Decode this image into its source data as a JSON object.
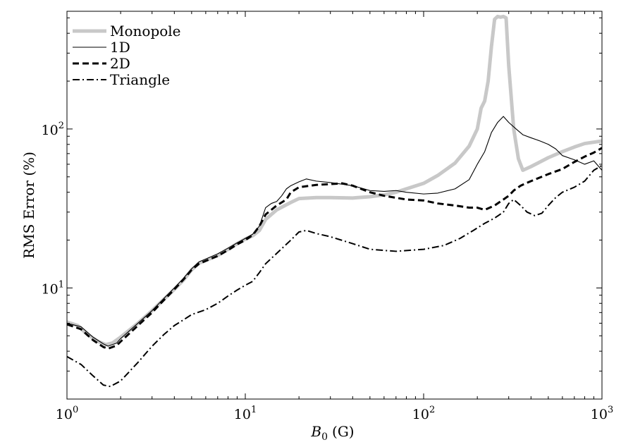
{
  "chart_data": {
    "type": "line",
    "title": "",
    "xlabel": {
      "symbol": "B",
      "subscript": "0",
      "unit": "(G)"
    },
    "ylabel": "RMS Error (%)",
    "xscale": "log",
    "yscale": "log",
    "xlim": [
      1,
      1000
    ],
    "ylim": [
      2,
      550
    ],
    "grid": false,
    "legend_position": "top-left",
    "x_ticks": [
      {
        "value": 1,
        "base": "10",
        "exp": "0"
      },
      {
        "value": 10,
        "base": "10",
        "exp": "1"
      },
      {
        "value": 100,
        "base": "10",
        "exp": "2"
      },
      {
        "value": 1000,
        "base": "10",
        "exp": "3"
      }
    ],
    "y_ticks": [
      {
        "value": 10,
        "base": "10",
        "exp": "1"
      },
      {
        "value": 100,
        "base": "10",
        "exp": "2"
      }
    ],
    "series": [
      {
        "name": "Monopole",
        "color": "#c8c8c8",
        "style": "solid",
        "width": 5,
        "points": [
          [
            1,
            6.1
          ],
          [
            1.15,
            5.8
          ],
          [
            1.3,
            5.1
          ],
          [
            1.5,
            4.6
          ],
          [
            1.65,
            4.4
          ],
          [
            1.8,
            4.5
          ],
          [
            2,
            4.9
          ],
          [
            2.5,
            6.0
          ],
          [
            3,
            7.2
          ],
          [
            3.5,
            8.5
          ],
          [
            4,
            9.8
          ],
          [
            4.5,
            11.2
          ],
          [
            5,
            13.0
          ],
          [
            5.5,
            14.3
          ],
          [
            6,
            14.9
          ],
          [
            7,
            16.0
          ],
          [
            8,
            17.5
          ],
          [
            9,
            19.0
          ],
          [
            10,
            20.3
          ],
          [
            11,
            21.3
          ],
          [
            12,
            23.0
          ],
          [
            13,
            27.0
          ],
          [
            15,
            31.0
          ],
          [
            18,
            34.5
          ],
          [
            20,
            36.5
          ],
          [
            25,
            37.0
          ],
          [
            30,
            37.0
          ],
          [
            40,
            36.8
          ],
          [
            50,
            37.5
          ],
          [
            60,
            38.5
          ],
          [
            70,
            40.0
          ],
          [
            80,
            42.0
          ],
          [
            100,
            45.5
          ],
          [
            120,
            51.0
          ],
          [
            150,
            61.0
          ],
          [
            180,
            78.0
          ],
          [
            200,
            100.0
          ],
          [
            210,
            135.0
          ],
          [
            220,
            150.0
          ],
          [
            230,
            200.0
          ],
          [
            240,
            330.0
          ],
          [
            250,
            490.0
          ],
          [
            260,
            510.0
          ],
          [
            270,
            505.0
          ],
          [
            280,
            510.0
          ],
          [
            290,
            500.0
          ],
          [
            300,
            250.0
          ],
          [
            320,
            100.0
          ],
          [
            340,
            65.0
          ],
          [
            360,
            55.0
          ],
          [
            400,
            58.0
          ],
          [
            500,
            66.0
          ],
          [
            600,
            72.0
          ],
          [
            700,
            77.0
          ],
          [
            800,
            81.0
          ],
          [
            1000,
            84.0
          ]
        ]
      },
      {
        "name": "1D",
        "color": "#000000",
        "style": "solid",
        "width": 1.1,
        "points": [
          [
            1,
            6.0
          ],
          [
            1.2,
            5.7
          ],
          [
            1.4,
            4.9
          ],
          [
            1.6,
            4.45
          ],
          [
            1.7,
            4.3
          ],
          [
            1.9,
            4.5
          ],
          [
            2,
            4.8
          ],
          [
            2.5,
            6.0
          ],
          [
            3,
            7.2
          ],
          [
            3.5,
            8.6
          ],
          [
            4,
            10.0
          ],
          [
            4.5,
            11.5
          ],
          [
            5,
            13.2
          ],
          [
            5.5,
            14.6
          ],
          [
            6,
            15.2
          ],
          [
            7,
            16.4
          ],
          [
            8,
            17.8
          ],
          [
            9,
            19.2
          ],
          [
            10,
            20.5
          ],
          [
            11,
            21.8
          ],
          [
            12,
            24.5
          ],
          [
            13,
            32.0
          ],
          [
            14,
            34.0
          ],
          [
            15,
            35.0
          ],
          [
            16,
            38.0
          ],
          [
            17,
            42.0
          ],
          [
            18,
            44.0
          ],
          [
            20,
            46.5
          ],
          [
            22,
            48.5
          ],
          [
            25,
            47.0
          ],
          [
            30,
            46.0
          ],
          [
            40,
            44.0
          ],
          [
            50,
            41.0
          ],
          [
            60,
            40.5
          ],
          [
            70,
            41.0
          ],
          [
            80,
            40.0
          ],
          [
            100,
            39.0
          ],
          [
            120,
            39.5
          ],
          [
            150,
            42.0
          ],
          [
            180,
            48.0
          ],
          [
            200,
            60.0
          ],
          [
            220,
            72.0
          ],
          [
            240,
            95.0
          ],
          [
            260,
            110.0
          ],
          [
            280,
            120.0
          ],
          [
            300,
            110.0
          ],
          [
            330,
            100.0
          ],
          [
            360,
            92.0
          ],
          [
            400,
            88.0
          ],
          [
            450,
            84.0
          ],
          [
            500,
            80.0
          ],
          [
            550,
            75.0
          ],
          [
            600,
            68.0
          ],
          [
            700,
            64.0
          ],
          [
            800,
            60.0
          ],
          [
            900,
            63.0
          ],
          [
            1000,
            55.0
          ]
        ]
      },
      {
        "name": "2D",
        "color": "#000000",
        "style": "dashed",
        "width": 3,
        "points": [
          [
            1,
            5.9
          ],
          [
            1.2,
            5.5
          ],
          [
            1.4,
            4.7
          ],
          [
            1.6,
            4.25
          ],
          [
            1.7,
            4.15
          ],
          [
            1.9,
            4.35
          ],
          [
            2,
            4.6
          ],
          [
            2.5,
            5.8
          ],
          [
            3,
            7.0
          ],
          [
            3.5,
            8.4
          ],
          [
            4,
            9.8
          ],
          [
            4.5,
            11.3
          ],
          [
            5,
            13.0
          ],
          [
            5.5,
            14.2
          ],
          [
            6,
            14.8
          ],
          [
            7,
            15.9
          ],
          [
            8,
            17.3
          ],
          [
            9,
            18.8
          ],
          [
            10,
            20.0
          ],
          [
            11,
            21.5
          ],
          [
            12,
            24.5
          ],
          [
            13,
            29.0
          ],
          [
            15,
            33.0
          ],
          [
            17,
            36.0
          ],
          [
            18,
            40.0
          ],
          [
            20,
            43.0
          ],
          [
            25,
            44.5
          ],
          [
            30,
            45.0
          ],
          [
            35,
            45.5
          ],
          [
            40,
            44.0
          ],
          [
            50,
            40.0
          ],
          [
            60,
            38.0
          ],
          [
            80,
            36.0
          ],
          [
            100,
            35.5
          ],
          [
            120,
            34.0
          ],
          [
            150,
            33.0
          ],
          [
            180,
            32.0
          ],
          [
            200,
            32.0
          ],
          [
            220,
            31.0
          ],
          [
            250,
            33.0
          ],
          [
            280,
            36.0
          ],
          [
            300,
            38.0
          ],
          [
            320,
            41.0
          ],
          [
            350,
            44.0
          ],
          [
            400,
            47.0
          ],
          [
            500,
            52.0
          ],
          [
            600,
            56.0
          ],
          [
            700,
            62.0
          ],
          [
            800,
            67.0
          ],
          [
            900,
            71.0
          ],
          [
            1000,
            76.0
          ]
        ]
      },
      {
        "name": "Triangle",
        "color": "#000000",
        "style": "dashdot",
        "width": 2,
        "points": [
          [
            1,
            3.7
          ],
          [
            1.2,
            3.3
          ],
          [
            1.4,
            2.8
          ],
          [
            1.6,
            2.45
          ],
          [
            1.75,
            2.4
          ],
          [
            2,
            2.6
          ],
          [
            2.5,
            3.4
          ],
          [
            3,
            4.3
          ],
          [
            3.5,
            5.1
          ],
          [
            4,
            5.8
          ],
          [
            4.5,
            6.3
          ],
          [
            5,
            6.8
          ],
          [
            6,
            7.3
          ],
          [
            7,
            8.0
          ],
          [
            8,
            8.9
          ],
          [
            9,
            9.7
          ],
          [
            10,
            10.4
          ],
          [
            11,
            11.0
          ],
          [
            12,
            12.5
          ],
          [
            13,
            14.2
          ],
          [
            15,
            16.5
          ],
          [
            18,
            20.0
          ],
          [
            20,
            22.5
          ],
          [
            22,
            23.0
          ],
          [
            25,
            22.0
          ],
          [
            30,
            21.0
          ],
          [
            40,
            19.0
          ],
          [
            50,
            17.5
          ],
          [
            70,
            17.0
          ],
          [
            100,
            17.5
          ],
          [
            130,
            18.5
          ],
          [
            160,
            20.5
          ],
          [
            190,
            23.0
          ],
          [
            220,
            25.5
          ],
          [
            250,
            27.5
          ],
          [
            280,
            30.0
          ],
          [
            300,
            34.0
          ],
          [
            320,
            36.0
          ],
          [
            350,
            33.0
          ],
          [
            380,
            30.0
          ],
          [
            420,
            28.5
          ],
          [
            460,
            29.5
          ],
          [
            500,
            33.0
          ],
          [
            550,
            37.0
          ],
          [
            600,
            40.0
          ],
          [
            700,
            43.0
          ],
          [
            800,
            47.0
          ],
          [
            900,
            55.0
          ],
          [
            1000,
            59.0
          ]
        ]
      }
    ]
  }
}
